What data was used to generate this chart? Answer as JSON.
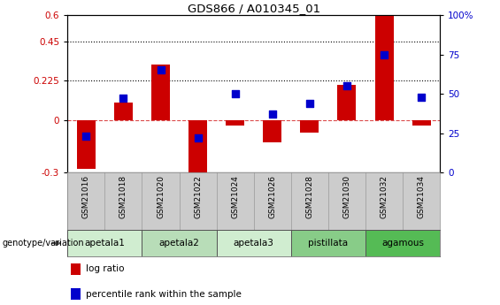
{
  "title": "GDS866 / A010345_01",
  "samples": [
    "GSM21016",
    "GSM21018",
    "GSM21020",
    "GSM21022",
    "GSM21024",
    "GSM21026",
    "GSM21028",
    "GSM21030",
    "GSM21032",
    "GSM21034"
  ],
  "log_ratio": [
    -0.28,
    0.1,
    0.32,
    -0.34,
    -0.03,
    -0.13,
    -0.07,
    0.2,
    0.6,
    -0.03
  ],
  "percentile_rank": [
    23,
    47,
    65,
    22,
    50,
    37,
    44,
    55,
    75,
    48
  ],
  "ylim_left": [
    -0.3,
    0.6
  ],
  "ylim_right": [
    0,
    100
  ],
  "yticks_left": [
    -0.3,
    0,
    0.225,
    0.45,
    0.6
  ],
  "ytick_labels_left": [
    "-0.3",
    "0",
    "0.225",
    "0.45",
    "0.6"
  ],
  "yticks_right": [
    0,
    25,
    50,
    75,
    100
  ],
  "ytick_labels_right": [
    "0",
    "25",
    "50",
    "75",
    "100%"
  ],
  "hlines": [
    0.225,
    0.45
  ],
  "genotype_groups": [
    {
      "label": "apetala1",
      "start": 0,
      "end": 2,
      "color": "#d0edd0"
    },
    {
      "label": "apetala2",
      "start": 2,
      "end": 4,
      "color": "#b8ddb8"
    },
    {
      "label": "apetala3",
      "start": 4,
      "end": 6,
      "color": "#d0edd0"
    },
    {
      "label": "pistillata",
      "start": 6,
      "end": 8,
      "color": "#88cc88"
    },
    {
      "label": "agamous",
      "start": 8,
      "end": 10,
      "color": "#55bb55"
    }
  ],
  "bar_color": "#cc0000",
  "dot_color": "#0000cc",
  "bar_width": 0.5,
  "dot_size": 30,
  "background_color": "#ffffff",
  "axis_bg_color": "#ffffff",
  "label_color_left": "#cc0000",
  "label_color_right": "#0000cc",
  "zero_line_color": "#cc0000",
  "label_area_color": "#cccccc",
  "legend_items": [
    {
      "label": "log ratio",
      "color": "#cc0000"
    },
    {
      "label": "percentile rank within the sample",
      "color": "#0000cc"
    }
  ],
  "genotype_label": "genotype/variation"
}
